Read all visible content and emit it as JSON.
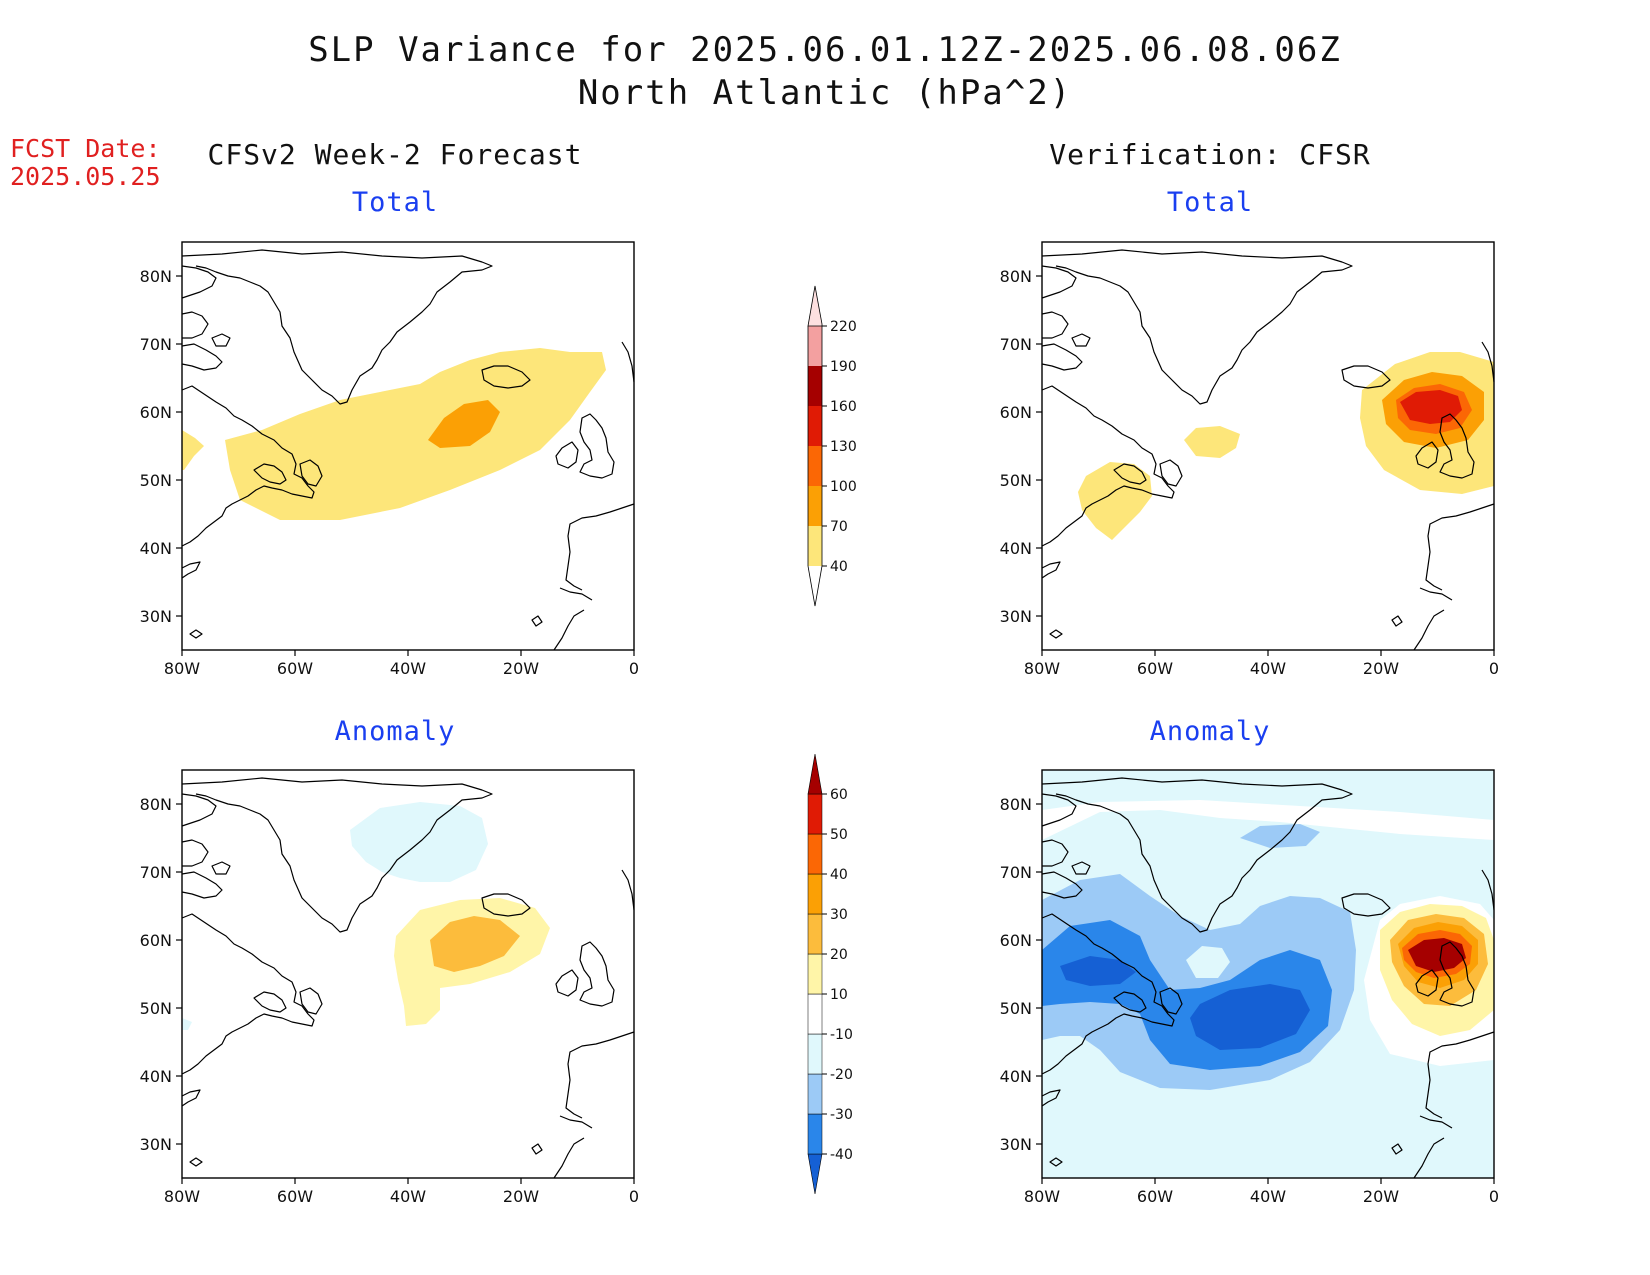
{
  "header": {
    "title": "SLP Variance for 2025.06.01.12Z-2025.06.08.06Z",
    "subtitle": "North Atlantic (hPa^2)"
  },
  "fcst_label": "FCST Date:",
  "fcst_date": "2025.05.25",
  "columns": {
    "left": "CFSv2 Week-2 Forecast",
    "right": "Verification: CFSR"
  },
  "panels": {
    "fcst_total": "Total",
    "fcst_anomaly": "Anomaly",
    "verif_total": "Total",
    "verif_anomaly": "Anomaly"
  },
  "axes": {
    "lat_labels": [
      "80N",
      "70N",
      "60N",
      "50N",
      "40N",
      "30N"
    ],
    "lat_values": [
      80,
      70,
      60,
      50,
      40,
      30
    ],
    "lon_labels": [
      "80W",
      "60W",
      "40W",
      "20W",
      "0"
    ],
    "lon_values": [
      -80,
      -60,
      -40,
      -20,
      0
    ],
    "lat_range": [
      25,
      85
    ],
    "lon_range": [
      -80,
      0
    ]
  },
  "colorbar_total": {
    "levels": [
      "40",
      "70",
      "100",
      "130",
      "160",
      "190",
      "220"
    ],
    "colors": [
      "#fde67a",
      "#fba005",
      "#fb6705",
      "#e01b05",
      "#a50000",
      "#f3a0a0",
      "#fde0e0"
    ]
  },
  "colorbar_anomaly": {
    "levels": [
      "-40",
      "-30",
      "-20",
      "-10",
      "10",
      "20",
      "30",
      "40",
      "50",
      "60"
    ],
    "colors": [
      "#1560d4",
      "#2a86ea",
      "#9ccaf6",
      "#e0f8fc",
      "#ffffff",
      "#fff5a8",
      "#fcbc3c",
      "#fba005",
      "#fb6705",
      "#e01b05",
      "#a50000"
    ]
  },
  "colors": {
    "title": "#111111",
    "fcst": "#e02020",
    "panel_title": "#1a3ff0"
  }
}
